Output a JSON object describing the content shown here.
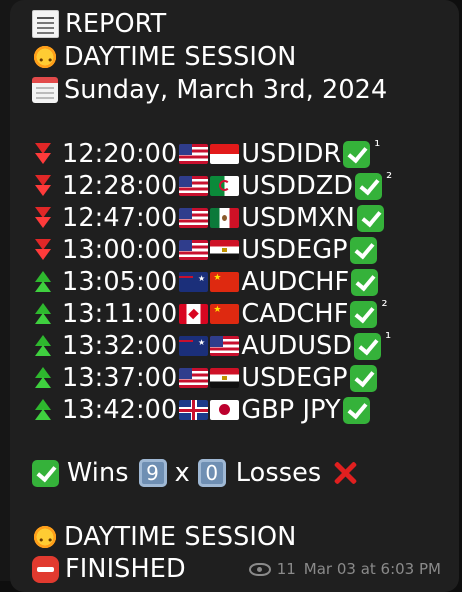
{
  "report": {
    "title": "REPORT",
    "session": "DAYTIME SESSION",
    "date": "Sunday,  March 3rd,  2024"
  },
  "trades": [
    {
      "direction": "down",
      "time": "12:20:00",
      "flags": [
        "us",
        "id"
      ],
      "pair": "USDIDR",
      "result": "win",
      "note": "¹"
    },
    {
      "direction": "down",
      "time": "12:28:00",
      "flags": [
        "us",
        "dz"
      ],
      "pair": "USDDZD",
      "result": "win",
      "note": "²"
    },
    {
      "direction": "down",
      "time": "12:47:00",
      "flags": [
        "us",
        "mx"
      ],
      "pair": "USDMXN",
      "result": "win",
      "note": ""
    },
    {
      "direction": "down",
      "time": "13:00:00",
      "flags": [
        "us",
        "eg"
      ],
      "pair": "USDEGP",
      "result": "win",
      "note": ""
    },
    {
      "direction": "up",
      "time": "13:05:00",
      "flags": [
        "au",
        "cn"
      ],
      "pair": "AUDCHF",
      "result": "win",
      "note": ""
    },
    {
      "direction": "up",
      "time": "13:11:00",
      "flags": [
        "ca",
        "cn"
      ],
      "pair": "CADCHF",
      "result": "win",
      "note": "²"
    },
    {
      "direction": "up",
      "time": "13:32:00",
      "flags": [
        "au",
        "us"
      ],
      "pair": "AUDUSD",
      "result": "win",
      "note": "¹"
    },
    {
      "direction": "up",
      "time": "13:37:00",
      "flags": [
        "us",
        "eg"
      ],
      "pair": "USDEGP",
      "result": "win",
      "note": ""
    },
    {
      "direction": "up",
      "time": "13:42:00",
      "flags": [
        "gb",
        "jp"
      ],
      "pair": "GBP JPY",
      "result": "win",
      "note": ""
    }
  ],
  "summary": {
    "wins_label": "Wins",
    "wins_count": "9",
    "separator": "x",
    "losses_count": "0",
    "losses_label": "Losses"
  },
  "footer": {
    "session": "DAYTIME SESSION",
    "status": "FINISHED"
  },
  "meta": {
    "views": "11",
    "timestamp": "Mar 03 at 6:03 PM"
  },
  "colors": {
    "background": "#0e0e0e",
    "bubble": "#1f1f1f",
    "text": "#ffffff",
    "win_green": "#35b23a",
    "loss_red": "#e01f1f",
    "muted": "#8a8a8a"
  },
  "icons": {
    "title": "receipt-icon",
    "session": "sun-icon",
    "date": "calendar-icon",
    "down": "arrow-down-icon",
    "up": "arrow-up-icon",
    "win": "check-icon",
    "loss": "cross-icon",
    "finished": "stop-icon",
    "views": "eye-icon"
  }
}
